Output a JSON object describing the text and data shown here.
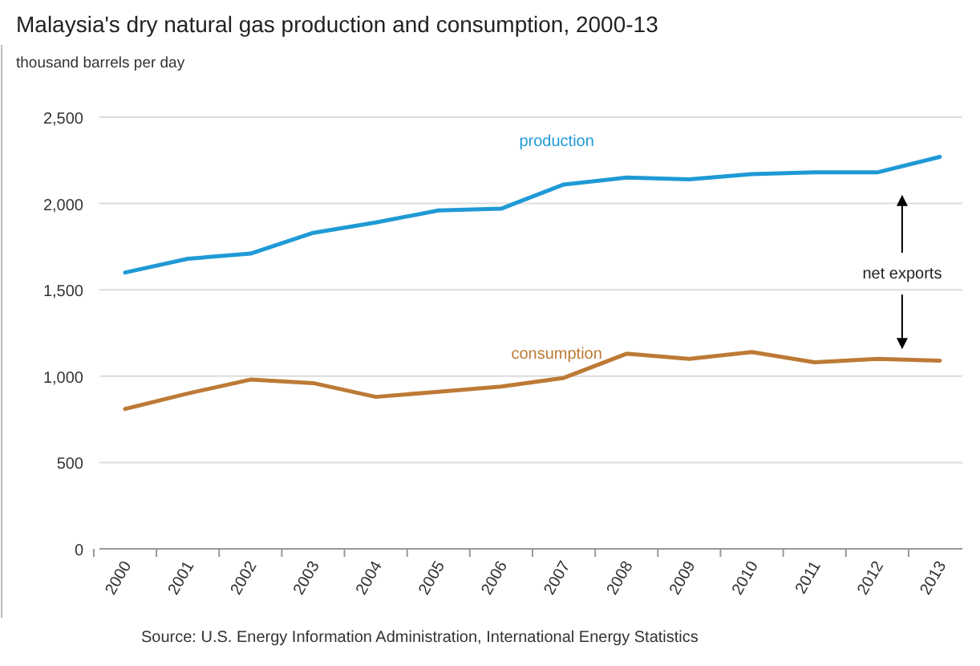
{
  "chart_data": {
    "type": "line",
    "title": "Malaysia's dry natural gas production and consumption, 2000-13",
    "ylabel": "thousand barrels per day",
    "categories": [
      "2000",
      "2001",
      "2002",
      "2003",
      "2004",
      "2005",
      "2006",
      "2007",
      "2008",
      "2009",
      "2010",
      "2011",
      "2012",
      "2013"
    ],
    "series": [
      {
        "name": "production",
        "color": "#1f9ad6",
        "values": [
          1600,
          1680,
          1710,
          1830,
          1890,
          1960,
          1970,
          2110,
          2150,
          2140,
          2170,
          2180,
          2180,
          2270
        ]
      },
      {
        "name": "consumption",
        "color": "#bd7a36",
        "values": [
          810,
          900,
          980,
          960,
          880,
          910,
          940,
          990,
          1130,
          1100,
          1140,
          1080,
          1100,
          1090
        ]
      }
    ],
    "ylim": [
      0,
      2500
    ],
    "yticks": [
      {
        "value": 0,
        "label": "0"
      },
      {
        "value": 500,
        "label": "500"
      },
      {
        "value": 1000,
        "label": "1,000"
      },
      {
        "value": 1500,
        "label": "1,500"
      },
      {
        "value": 2000,
        "label": "2,000"
      },
      {
        "value": 2500,
        "label": "2,500"
      }
    ],
    "grid": "y",
    "marker": "none",
    "line_style": "solid",
    "annotations": [
      "net exports",
      "Source: U.S. Energy Information Administration, International Energy Statistics"
    ]
  }
}
